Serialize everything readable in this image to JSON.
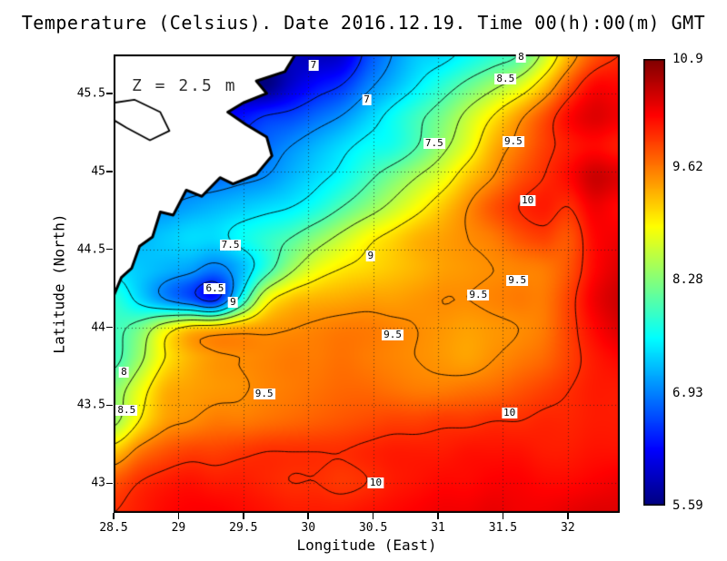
{
  "title": "Temperature (Celsius). Date 2016.12.19. Time 00(h):00(m) GMT",
  "annotation": "Z = 2.5 m",
  "axes": {
    "x": {
      "label": "Longitude (East)",
      "tick_values": [
        28.5,
        29,
        29.5,
        30,
        30.5,
        31,
        31.5,
        32
      ],
      "tick_labels": [
        "28.5",
        "29",
        "29.5",
        "30",
        "30.5",
        "31",
        "31.5",
        "32"
      ]
    },
    "y": {
      "label": "Latitude (North)",
      "tick_values": [
        43,
        43.5,
        44,
        44.5,
        45,
        45.5
      ],
      "tick_labels": [
        "43",
        "43.5",
        "44",
        "44.5",
        "45",
        "45.5"
      ]
    }
  },
  "colorbar": {
    "min": 5.59,
    "max": 10.9,
    "tick_values": [
      5.59,
      6.93,
      8.28,
      9.62,
      10.9
    ],
    "tick_labels": [
      "5.59",
      "6.93",
      "8.28",
      "9.62",
      "10.9"
    ]
  },
  "chart_data": {
    "type": "heatmap",
    "title": "Temperature (Celsius). Date 2016.12.19. Time 00(h):00(m) GMT",
    "xlabel": "Longitude (East)",
    "ylabel": "Latitude (North)",
    "units": "Celsius",
    "depth_label": "Z = 2.5 m",
    "x_range": [
      28.5,
      32.4
    ],
    "y_range": [
      42.81,
      45.75
    ],
    "color_range": [
      5.59,
      10.9
    ],
    "colormap": "jet",
    "grid_on": true,
    "contour_levels": [
      6.5,
      7,
      7.5,
      8,
      8.5,
      9,
      9.5,
      10
    ],
    "grid": {
      "rows": 16,
      "cols": 21,
      "order": "rows north(45.75) to south(42.81); cols west(28.5) to east(32.4)",
      "values": [
        [
          6.5,
          6.5,
          6.4,
          6.3,
          6.2,
          6.0,
          5.8,
          5.9,
          5.9,
          6.0,
          6.6,
          7.0,
          7.3,
          7.4,
          7.6,
          7.8,
          8.0,
          8.6,
          9.3,
          9.8,
          10.0
        ],
        [
          6.4,
          6.3,
          6.2,
          6.1,
          6.0,
          5.7,
          5.6,
          6.0,
          6.3,
          6.5,
          6.9,
          7.2,
          7.5,
          7.8,
          8.1,
          8.4,
          8.7,
          9.2,
          9.8,
          10.2,
          10.2
        ],
        [
          6.6,
          6.5,
          6.4,
          6.3,
          6.2,
          6.3,
          6.5,
          6.6,
          6.8,
          7.0,
          7.3,
          7.6,
          7.9,
          8.2,
          8.6,
          9.0,
          9.4,
          9.8,
          10.2,
          10.4,
          10.3
        ],
        [
          6.8,
          6.7,
          6.6,
          6.6,
          6.5,
          6.6,
          6.8,
          7.0,
          7.2,
          7.4,
          7.6,
          7.7,
          8.0,
          8.4,
          8.8,
          9.3,
          9.6,
          9.9,
          10.1,
          10.2,
          10.1
        ],
        [
          7.0,
          6.9,
          6.8,
          6.8,
          6.8,
          6.9,
          7.0,
          7.2,
          7.4,
          7.6,
          7.9,
          8.2,
          8.5,
          8.8,
          9.2,
          9.5,
          9.8,
          10.0,
          10.2,
          10.5,
          10.4
        ],
        [
          7.0,
          7.0,
          7.0,
          7.1,
          7.2,
          7.3,
          7.4,
          7.5,
          7.7,
          8.0,
          8.3,
          8.6,
          8.9,
          9.2,
          9.5,
          9.8,
          10.0,
          10.1,
          10.0,
          10.3,
          10.2
        ],
        [
          7.2,
          7.2,
          7.3,
          7.4,
          7.4,
          7.6,
          7.8,
          8.0,
          8.3,
          8.6,
          8.9,
          9.1,
          9.3,
          9.4,
          9.5,
          9.6,
          9.8,
          9.9,
          9.8,
          10.2,
          10.3
        ],
        [
          7.4,
          7.3,
          7.2,
          7.1,
          6.9,
          7.2,
          7.8,
          8.4,
          8.8,
          9.0,
          9.1,
          9.2,
          9.3,
          9.4,
          9.45,
          9.5,
          9.55,
          9.6,
          9.8,
          10.2,
          10.4
        ],
        [
          7.8,
          7.4,
          7.0,
          6.7,
          6.4,
          7.6,
          8.8,
          9.2,
          9.3,
          9.35,
          9.4,
          9.4,
          9.45,
          9.5,
          9.5,
          9.55,
          9.6,
          9.6,
          9.9,
          10.3,
          10.5
        ],
        [
          7.9,
          8.2,
          8.8,
          9.2,
          9.3,
          9.4,
          9.45,
          9.5,
          9.55,
          9.6,
          9.6,
          9.55,
          9.5,
          9.45,
          9.4,
          9.45,
          9.5,
          9.6,
          9.9,
          10.2,
          10.4
        ],
        [
          7.9,
          8.4,
          9.0,
          9.3,
          9.45,
          9.5,
          9.55,
          9.6,
          9.6,
          9.65,
          9.6,
          9.55,
          9.5,
          9.45,
          9.4,
          9.5,
          9.6,
          9.7,
          9.9,
          10.1,
          10.2
        ],
        [
          8.3,
          8.8,
          9.3,
          9.4,
          9.45,
          9.48,
          9.55,
          9.6,
          9.65,
          9.7,
          9.7,
          9.65,
          9.6,
          9.6,
          9.65,
          9.7,
          9.8,
          9.9,
          10.0,
          10.1,
          10.1
        ],
        [
          8.4,
          9.0,
          9.4,
          9.5,
          9.6,
          9.6,
          9.65,
          9.7,
          9.75,
          9.8,
          9.85,
          9.9,
          9.9,
          9.95,
          9.95,
          10.0,
          10.0,
          10.05,
          10.05,
          10.1,
          10.1
        ],
        [
          9.2,
          9.6,
          9.8,
          9.9,
          9.9,
          9.95,
          10.0,
          10.0,
          10.0,
          10.0,
          10.05,
          10.1,
          10.1,
          10.1,
          10.15,
          10.15,
          10.15,
          10.1,
          10.1,
          10.15,
          10.15
        ],
        [
          9.8,
          10.0,
          10.1,
          10.15,
          10.1,
          10.1,
          10.05,
          10.0,
          10.0,
          9.95,
          10.0,
          10.1,
          10.15,
          10.2,
          10.2,
          10.25,
          10.25,
          10.2,
          10.2,
          10.25,
          10.3
        ],
        [
          10.0,
          10.1,
          10.2,
          10.25,
          10.25,
          10.2,
          10.15,
          10.1,
          10.1,
          10.1,
          10.15,
          10.2,
          10.25,
          10.3,
          10.3,
          10.35,
          10.3,
          10.3,
          10.35,
          10.4,
          10.4
        ]
      ]
    },
    "contour_labels": [
      {
        "text": "7",
        "lon": 30.04,
        "lat": 45.68
      },
      {
        "text": "8",
        "lon": 31.64,
        "lat": 45.73
      },
      {
        "text": "8.5",
        "lon": 31.52,
        "lat": 45.59
      },
      {
        "text": "7",
        "lon": 30.45,
        "lat": 45.46
      },
      {
        "text": "7.5",
        "lon": 30.97,
        "lat": 45.18
      },
      {
        "text": "9.5",
        "lon": 31.58,
        "lat": 45.19
      },
      {
        "text": "10",
        "lon": 31.69,
        "lat": 44.81
      },
      {
        "text": "7.5",
        "lon": 29.4,
        "lat": 44.53
      },
      {
        "text": "9",
        "lon": 30.48,
        "lat": 44.46
      },
      {
        "text": "9.5",
        "lon": 31.61,
        "lat": 44.3
      },
      {
        "text": "9.5",
        "lon": 31.31,
        "lat": 44.21
      },
      {
        "text": "6.5",
        "lon": 29.28,
        "lat": 44.25
      },
      {
        "text": "9",
        "lon": 29.42,
        "lat": 44.16
      },
      {
        "text": "9.5",
        "lon": 30.65,
        "lat": 43.95
      },
      {
        "text": "8",
        "lon": 28.58,
        "lat": 43.71
      },
      {
        "text": "9.5",
        "lon": 29.66,
        "lat": 43.57
      },
      {
        "text": "8.5",
        "lon": 28.6,
        "lat": 43.47
      },
      {
        "text": "10",
        "lon": 31.55,
        "lat": 43.45
      },
      {
        "text": "10",
        "lon": 30.52,
        "lat": 43.0
      }
    ],
    "land_polygon": [
      [
        28.5,
        45.75
      ],
      [
        29.9,
        45.75
      ],
      [
        29.82,
        45.64
      ],
      [
        29.6,
        45.58
      ],
      [
        29.68,
        45.5
      ],
      [
        29.5,
        45.44
      ],
      [
        29.38,
        45.38
      ],
      [
        29.52,
        45.3
      ],
      [
        29.68,
        45.22
      ],
      [
        29.72,
        45.1
      ],
      [
        29.6,
        44.98
      ],
      [
        29.42,
        44.92
      ],
      [
        29.32,
        44.96
      ],
      [
        29.18,
        44.84
      ],
      [
        29.06,
        44.88
      ],
      [
        28.96,
        44.72
      ],
      [
        28.86,
        44.74
      ],
      [
        28.8,
        44.58
      ],
      [
        28.7,
        44.52
      ],
      [
        28.64,
        44.38
      ],
      [
        28.56,
        44.32
      ],
      [
        28.5,
        44.2
      ]
    ],
    "inland_water": [
      [
        28.5,
        45.44
      ],
      [
        28.66,
        45.46
      ],
      [
        28.86,
        45.38
      ],
      [
        28.93,
        45.26
      ],
      [
        28.78,
        45.2
      ],
      [
        28.6,
        45.28
      ],
      [
        28.5,
        45.33
      ]
    ]
  }
}
